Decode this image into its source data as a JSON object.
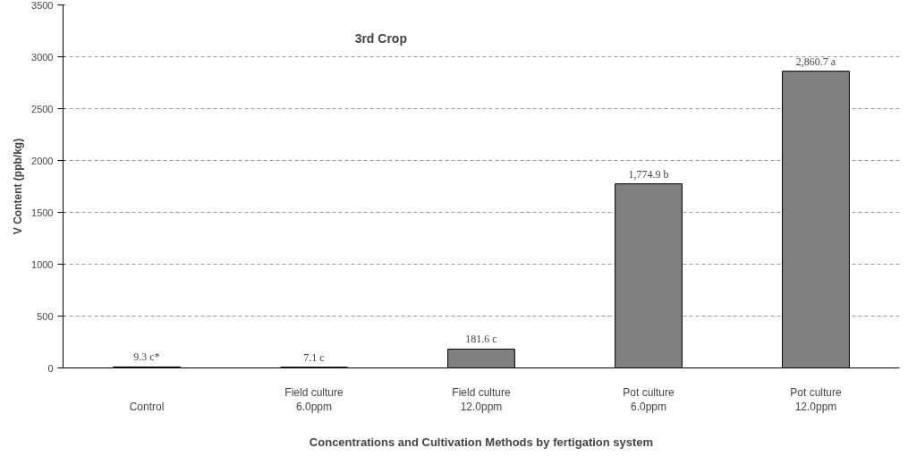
{
  "chart_data": {
    "type": "bar",
    "title": "3rd Crop",
    "xlabel": "Concentrations and Cultivation Methods by fertigation system",
    "ylabel": "V Content (ppb/kg)",
    "categories": [
      "Control",
      "Field culture\n6.0ppm",
      "Field culture\n12.0ppm",
      "Pot culture\n6.0ppm",
      "Pot culture\n12.0ppm"
    ],
    "values": [
      9.3,
      7.1,
      181.6,
      1774.9,
      2860.7
    ],
    "value_labels": [
      "9.3 c*",
      "7.1 c",
      "181.6 c",
      "1,774.9 b",
      "2,860.7 a"
    ],
    "color": "#808080",
    "ylim": [
      0,
      3500
    ],
    "yticks": [
      0,
      500,
      1000,
      1500,
      2000,
      2500,
      3000,
      3500
    ],
    "grid": "y"
  }
}
